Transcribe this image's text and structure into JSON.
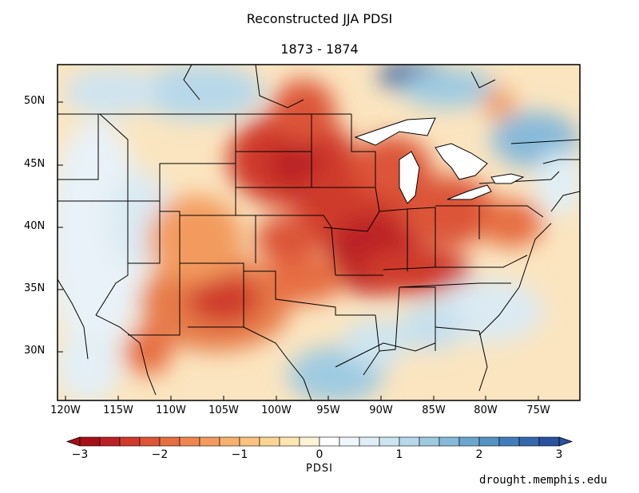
{
  "title_line1": "Reconstructed JJA PDSI",
  "title_line2": "1873 - 1874",
  "lat_labels": [
    "50N",
    "45N",
    "40N",
    "35N",
    "30N"
  ],
  "lon_labels": [
    "120W",
    "115W",
    "110W",
    "105W",
    "100W",
    "95W",
    "90W",
    "85W",
    "80W",
    "75W"
  ],
  "colorbar": {
    "label": "PDSI",
    "ticks": [
      "−3",
      "−2",
      "−1",
      "0",
      "1",
      "2",
      "3"
    ],
    "colors": [
      "#a50f15",
      "#bb2025",
      "#cf3a2b",
      "#dc5537",
      "#e66e43",
      "#ee8650",
      "#f39b5f",
      "#f7b06f",
      "#fac380",
      "#fcd596",
      "#fee6b2",
      "#fff3d6",
      "#ffffff",
      "#f0f7fb",
      "#e0eff6",
      "#cde5f0",
      "#b7d8ea",
      "#9ecae1",
      "#86b9d9",
      "#6ca6ce",
      "#5592c4",
      "#437db9",
      "#3568ad",
      "#28529e"
    ]
  },
  "credit": "drought.memphis.edu"
}
